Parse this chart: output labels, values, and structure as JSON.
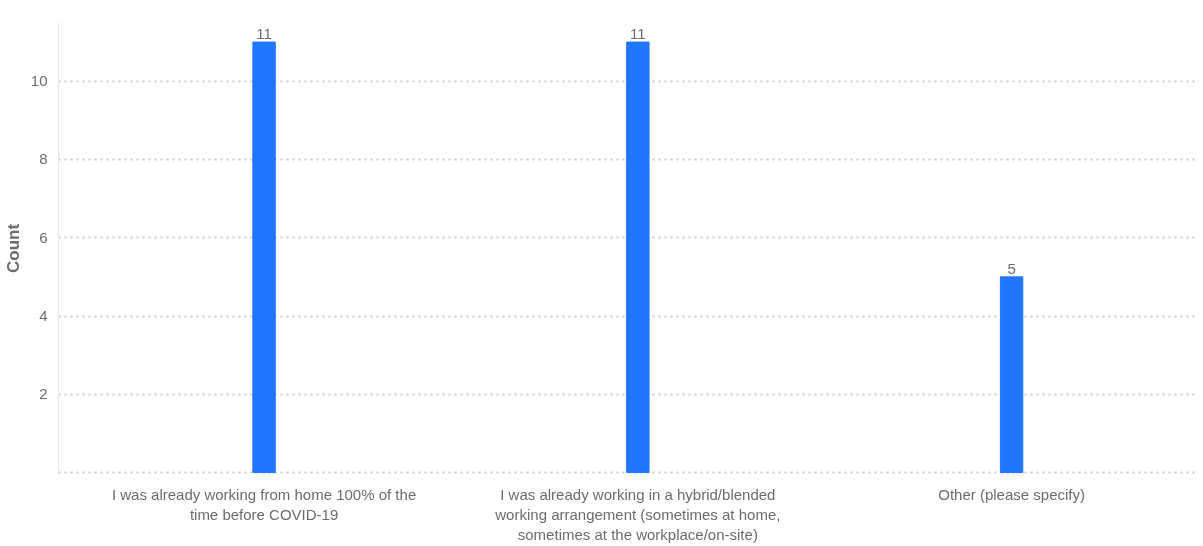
{
  "chart_data": {
    "type": "bar",
    "ylabel": "Count",
    "categories": [
      "I was already working from home 100% of the time before COVID-19",
      "I was already working in a hybrid/blended working arrangement (sometimes at home, sometimes at the workplace/on-site)",
      "Other (please specify)"
    ],
    "values": [
      11,
      11,
      5
    ],
    "color": "#2176ff",
    "ylim": [
      -0.05,
      11.5
    ],
    "yticks": [
      {
        "value": 0,
        "label": null
      },
      2,
      4,
      6,
      8,
      10
    ],
    "grid": "y",
    "data_labels": true
  }
}
